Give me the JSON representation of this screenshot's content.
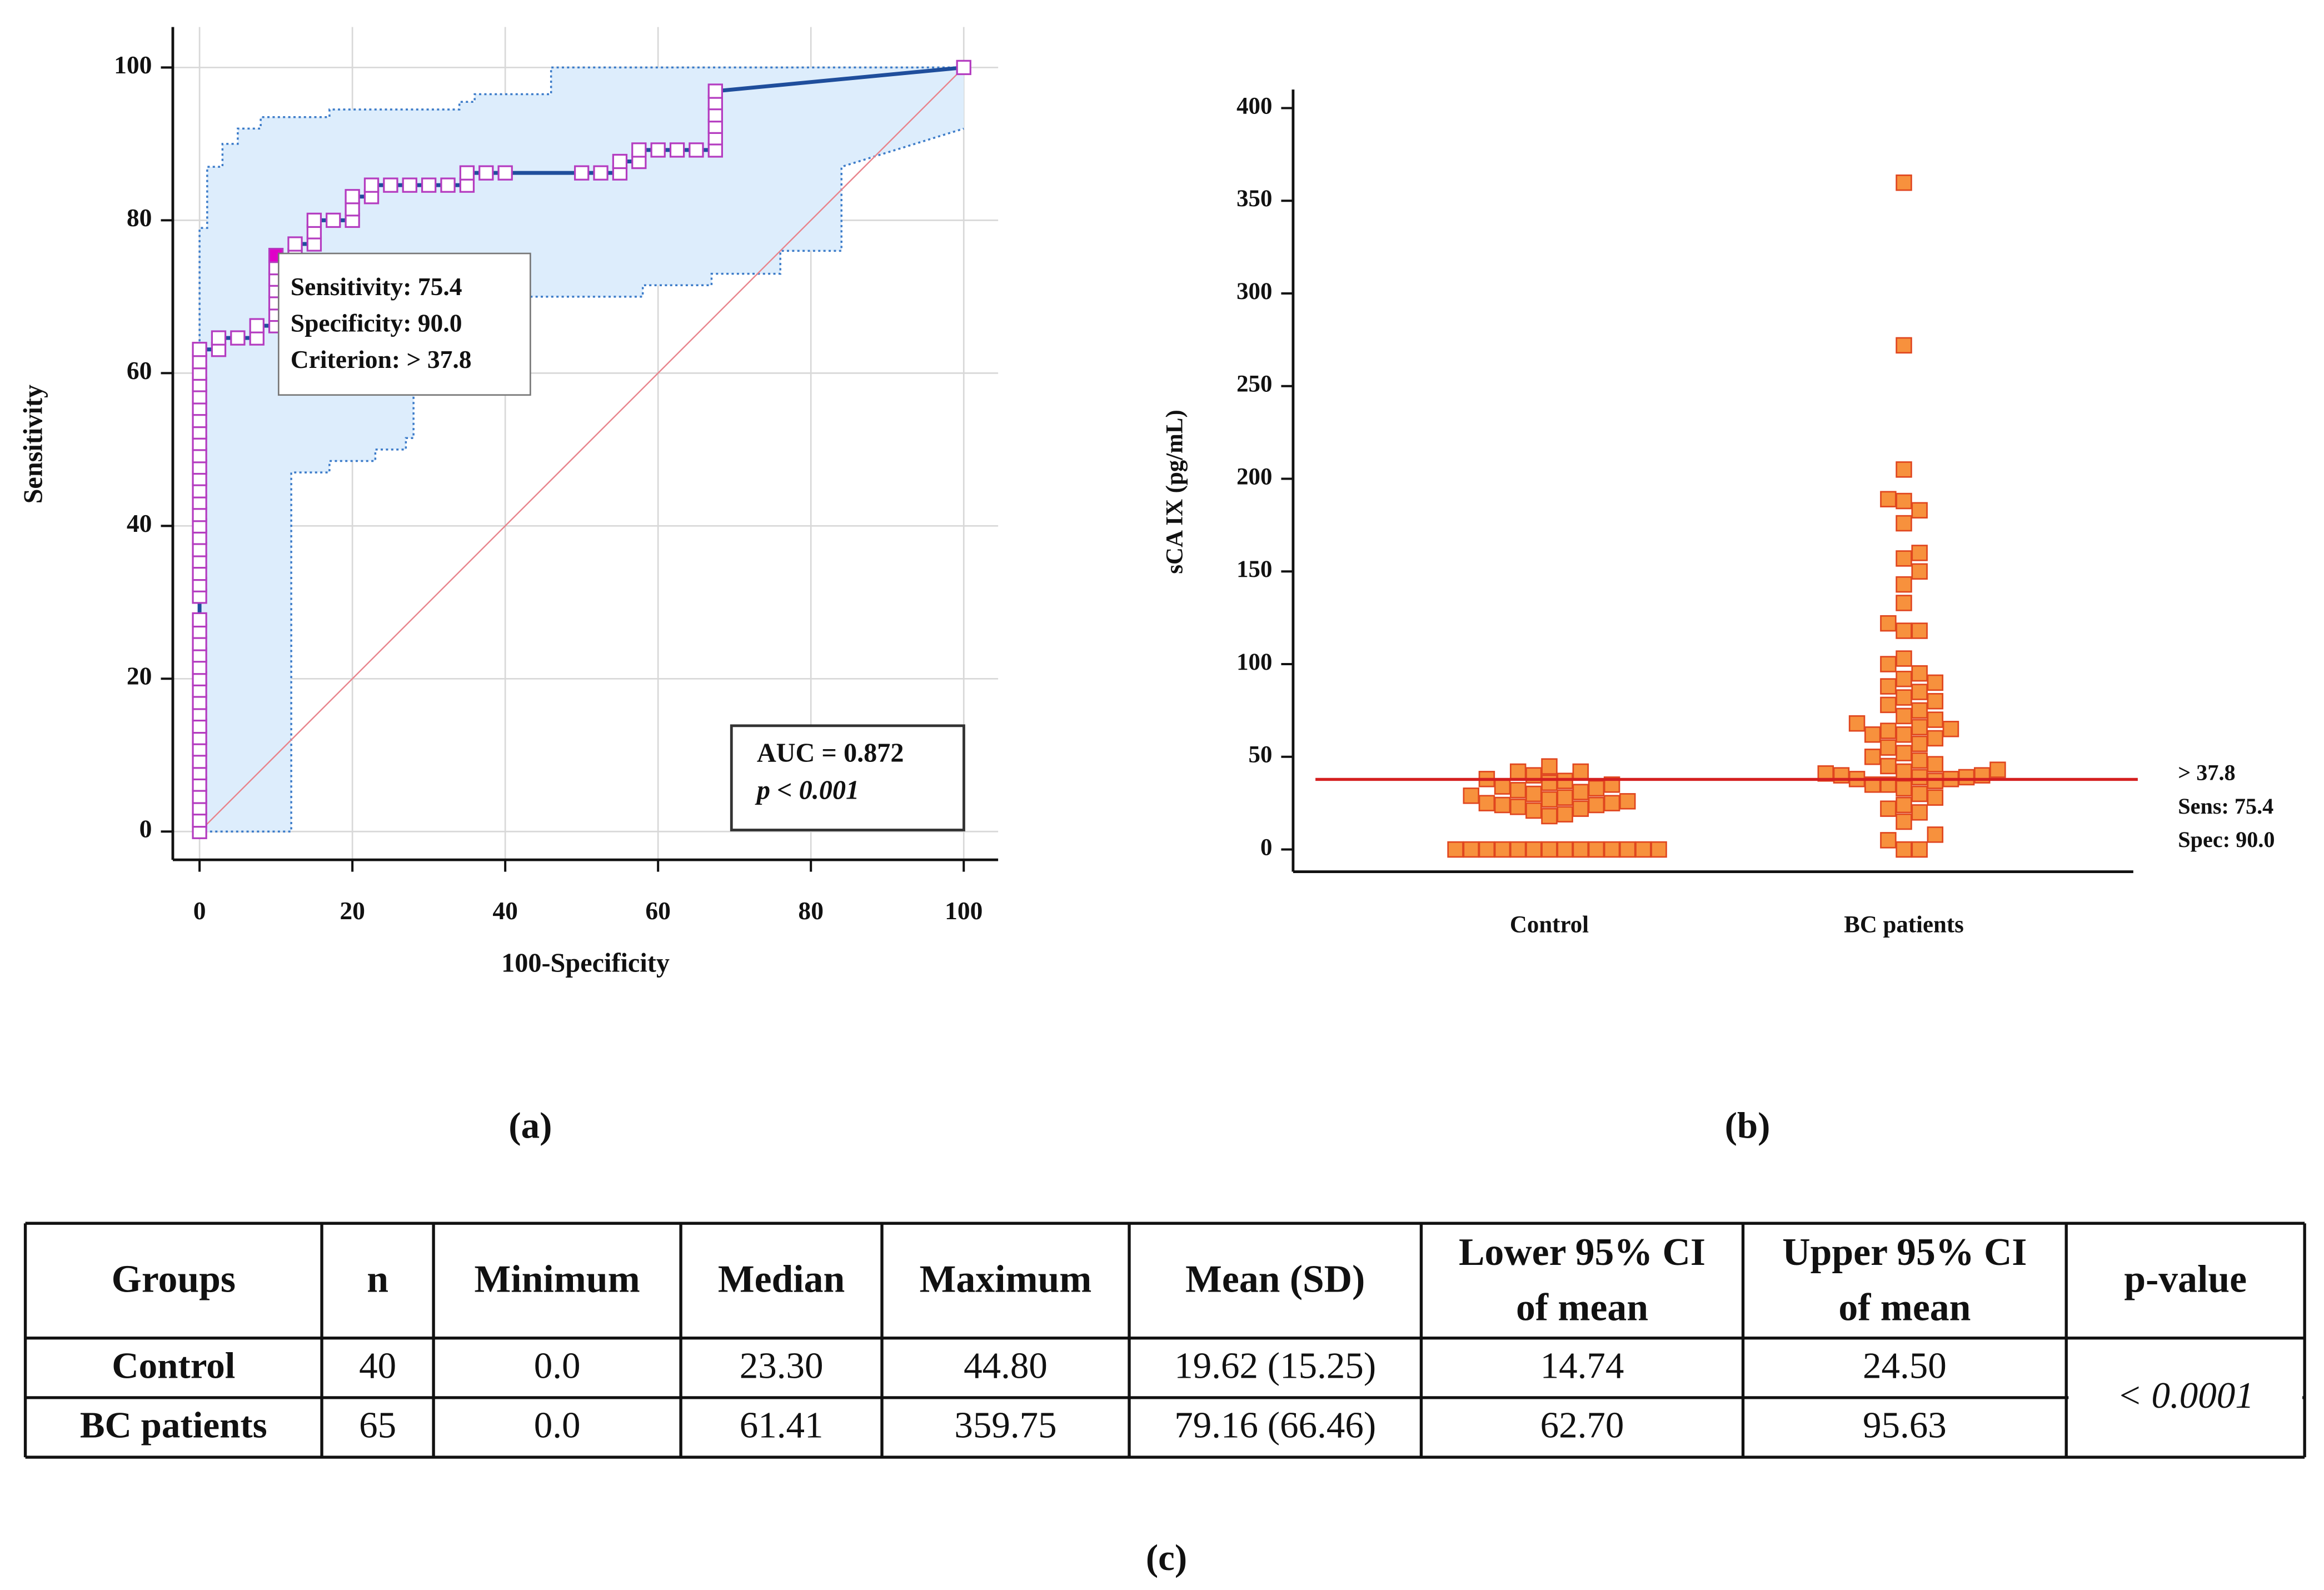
{
  "chart_data": [
    {
      "type": "line",
      "xlabel": "100-Specificity",
      "ylabel": "Sensitivity",
      "xlim": [
        -3.5,
        104.5
      ],
      "ylim": [
        -3.7,
        105.3
      ],
      "xticks": [
        0,
        20,
        40,
        60,
        80,
        100
      ],
      "yticks": [
        0,
        20,
        40,
        60,
        80,
        100
      ],
      "grid": true,
      "band_color": "#ddedfc",
      "series": [
        {
          "color": "#3d7cc9",
          "style": "dotted",
          "x": [
            0,
            12,
            12,
            17,
            17,
            23,
            23,
            27,
            27,
            28,
            28,
            40,
            40,
            58,
            58,
            67,
            67,
            76,
            76,
            84,
            84,
            100
          ],
          "values": [
            0,
            0,
            47,
            47,
            48.5,
            48.5,
            50,
            50,
            51.5,
            51.5,
            68,
            68,
            70,
            70,
            71.5,
            71.5,
            73,
            73,
            76,
            76,
            87,
            92
          ]
        },
        {
          "color": "#3d7cc9",
          "style": "dotted",
          "x": [
            0,
            0,
            1,
            1,
            3,
            3,
            5,
            5,
            8,
            8,
            17,
            17,
            34,
            34,
            36,
            36,
            46,
            46,
            100
          ],
          "values": [
            0,
            79,
            79,
            87,
            87,
            90,
            90,
            92,
            92,
            93.5,
            93.5,
            94.5,
            94.5,
            95.5,
            95.5,
            96.5,
            96.5,
            100,
            100
          ]
        },
        {
          "color": "#e8848c",
          "style": "thin",
          "x": [
            0,
            100
          ],
          "values": [
            0,
            100
          ]
        },
        {
          "color": "#1f4e9c",
          "style": "solid",
          "marker": "square",
          "marker_color": "#b43cc0",
          "x": [
            0,
            0,
            0,
            0,
            0,
            0,
            0,
            0,
            0,
            0,
            0,
            0,
            0,
            0,
            0,
            0,
            0,
            0,
            0,
            0,
            0,
            0,
            0,
            0,
            0,
            0,
            0,
            0,
            0,
            0,
            0,
            0,
            0,
            0,
            0,
            0,
            0,
            0,
            0,
            0,
            0,
            2.5,
            2.5,
            5,
            7.5,
            7.5,
            10,
            10,
            10,
            10,
            10,
            10,
            10,
            12.5,
            12.5,
            15,
            15,
            15,
            17.5,
            20,
            20,
            20,
            22.5,
            22.5,
            25,
            27.5,
            30,
            32.5,
            35,
            35,
            37.5,
            40,
            50,
            52.5,
            55,
            55,
            57.5,
            57.5,
            60,
            62.5,
            65,
            67.5,
            67.5,
            67.5,
            67.5,
            67.5,
            67.5,
            100
          ],
          "values": [
            0,
            1.5,
            3.1,
            4.6,
            6.2,
            7.7,
            9.2,
            10.8,
            12.3,
            13.8,
            15.4,
            16.9,
            18.5,
            20,
            21.5,
            23.1,
            24.6,
            26.2,
            27.7,
            30.8,
            32.3,
            33.8,
            35.4,
            36.9,
            38.5,
            40,
            41.5,
            43.1,
            44.6,
            46.2,
            47.7,
            49.2,
            50.8,
            52.3,
            53.8,
            55.4,
            56.9,
            58.5,
            60,
            61.5,
            63.1,
            63.1,
            64.6,
            64.6,
            64.6,
            66.2,
            66.2,
            67.7,
            69.2,
            70.8,
            72.3,
            73.8,
            75.4,
            75.4,
            76.9,
            76.9,
            78.5,
            80,
            80,
            80,
            81.5,
            83.1,
            83.1,
            84.6,
            84.6,
            84.6,
            84.6,
            84.6,
            84.6,
            86.2,
            86.2,
            86.2,
            86.2,
            86.2,
            86.2,
            87.7,
            87.7,
            89.2,
            89.2,
            89.2,
            89.2,
            89.2,
            90.8,
            92.3,
            93.8,
            95.4,
            96.9,
            100
          ]
        }
      ],
      "highlight": {
        "x": 10,
        "y": 75.4,
        "color": "#e000c8"
      },
      "annotation": [
        "Sensitivity: 75.4",
        "Specificity: 90.0",
        "Criterion: > 37.8"
      ],
      "stats": [
        "AUC = 0.872",
        "p < 0.001"
      ]
    },
    {
      "type": "scatter",
      "ylabel": "sCA IX (pg/mL)",
      "categories": [
        "Control",
        "BC patients"
      ],
      "ylim": [
        -12,
        410
      ],
      "yticks": [
        0,
        50,
        100,
        150,
        200,
        250,
        300,
        350,
        400
      ],
      "color": "#f7913d",
      "edge_color": "#e0461f",
      "values": [
        [
          0,
          0,
          0,
          0,
          0,
          0,
          0,
          0,
          0,
          0,
          0,
          0,
          0,
          0,
          18,
          19,
          21,
          22,
          23,
          24,
          24,
          25,
          25,
          26,
          27,
          28,
          29,
          30,
          31,
          32,
          33,
          34,
          35,
          36,
          37,
          38,
          40,
          42,
          42,
          44.8
        ],
        [
          0,
          0,
          5,
          8,
          15,
          20,
          22,
          24,
          28,
          30,
          33,
          35,
          35,
          37,
          38,
          38,
          39,
          39,
          40,
          40,
          41,
          42,
          43,
          45,
          46,
          48,
          50,
          52,
          55,
          57,
          60,
          62,
          62,
          64,
          65,
          66,
          68,
          70,
          72,
          75,
          78,
          80,
          82,
          85,
          88,
          90,
          92,
          95,
          100,
          103,
          118,
          118,
          122,
          133,
          143,
          150,
          157,
          160,
          176,
          183,
          188,
          189,
          205,
          272,
          359.75
        ]
      ],
      "cutoff": {
        "value": 37.8,
        "color": "#d42020",
        "labels": [
          "> 37.8",
          "Sens: 75.4",
          "Spec: 90.0"
        ]
      }
    }
  ],
  "panels": [
    "(a)",
    "(b)",
    "(c)"
  ],
  "table": {
    "headers": [
      [
        "Groups"
      ],
      [
        "n"
      ],
      [
        "Minimum"
      ],
      [
        "Median"
      ],
      [
        "Maximum"
      ],
      [
        "Mean (SD)"
      ],
      [
        "Lower 95% CI",
        "of mean"
      ],
      [
        "Upper 95% CI",
        "of mean"
      ],
      [
        "p-value"
      ]
    ],
    "rows": [
      [
        "Control",
        "40",
        "0.0",
        "23.30",
        "44.80",
        "19.62 (15.25)",
        "14.74",
        "24.50"
      ],
      [
        "BC patients",
        "65",
        "0.0",
        "61.41",
        "359.75",
        "79.16 (66.46)",
        "62.70",
        "95.63"
      ]
    ],
    "p_value": "< 0.0001"
  }
}
